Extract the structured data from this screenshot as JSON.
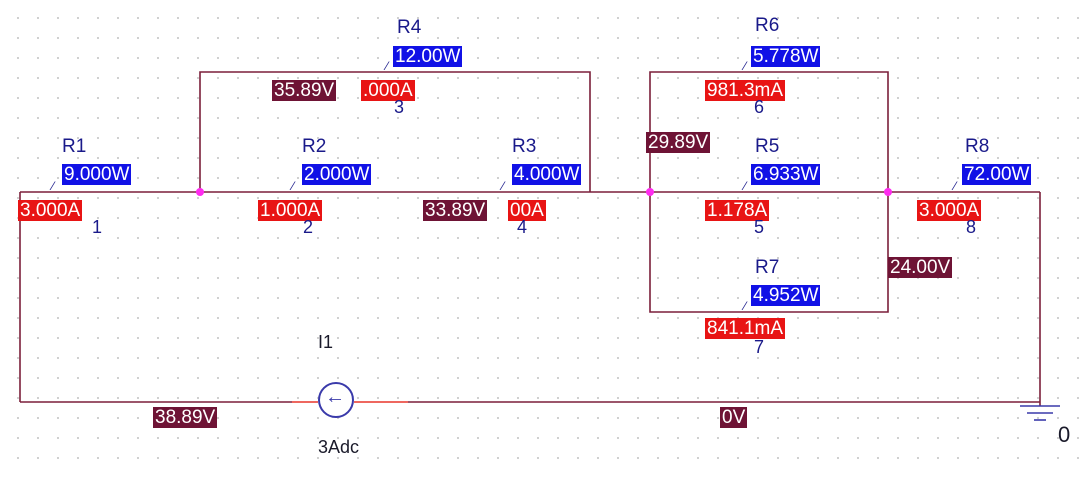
{
  "components": {
    "R1": {
      "ref": "R1",
      "power": "9.000W",
      "current": "3.000A",
      "node": "1"
    },
    "R2": {
      "ref": "R2",
      "power": "2.000W",
      "current": "1.000A",
      "node": "2"
    },
    "R3": {
      "ref": "R3",
      "power": "4.000W",
      "current": "00A",
      "node": "4"
    },
    "R4": {
      "ref": "R4",
      "power": "12.00W",
      "current": ".000A",
      "node": "3"
    },
    "R5": {
      "ref": "R5",
      "power": "6.933W",
      "current": "1.178A",
      "node": "5"
    },
    "R6": {
      "ref": "R6",
      "power": "5.778W",
      "current": "981.3mA",
      "node": "6"
    },
    "R7": {
      "ref": "R7",
      "power": "4.952W",
      "current": "841.1mA",
      "node": "7"
    },
    "R8": {
      "ref": "R8",
      "power": "72.00W",
      "current": "3.000A",
      "node": "8"
    },
    "I1": {
      "ref": "I1",
      "value": "3Adc"
    }
  },
  "voltages": {
    "v_top": "35.89V",
    "v_mid": "33.89V",
    "v_parallel": "29.89V",
    "v_right": "24.00V",
    "v_source": "38.89V",
    "v_zero": "0V"
  },
  "ground": {
    "label": "0",
    "icon": "ground-icon"
  },
  "colors": {
    "wire": "#7b1f3a",
    "power_tag": "#1111e6",
    "current_tag": "#e81414",
    "voltage_tag": "#6e1335",
    "junction": "#ff2bf0"
  }
}
